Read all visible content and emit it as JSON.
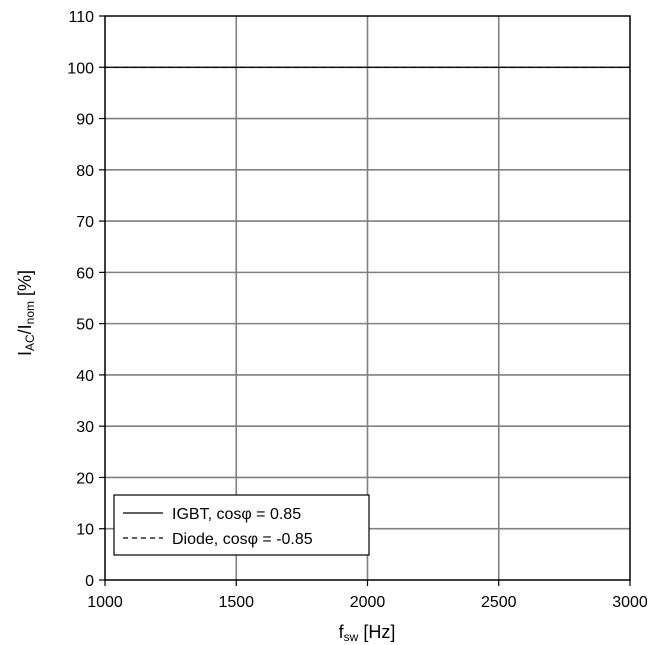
{
  "chart_data": {
    "type": "line",
    "title": "",
    "xlabel": {
      "main": "f",
      "sub": "sw",
      "unit": " [Hz]"
    },
    "ylabel": {
      "p1": "I",
      "s1": "AC",
      "p2": "/I",
      "s2": "nom",
      "unit": " [%]"
    },
    "xlim": [
      1000,
      3000
    ],
    "ylim": [
      0,
      110
    ],
    "xticks": [
      1000,
      1500,
      2000,
      2500,
      3000
    ],
    "yticks": [
      0,
      10,
      20,
      30,
      40,
      50,
      60,
      70,
      80,
      90,
      100,
      110
    ],
    "grid": true,
    "legend_position": "bottom-left",
    "series": [
      {
        "name": "IGBT, cosφ = 0.85",
        "style": "solid",
        "color": "#000000",
        "x": [
          1000,
          1500,
          2000,
          2500,
          3000
        ],
        "y": [
          100,
          100,
          100,
          100,
          100
        ]
      },
      {
        "name": "Diode, cosφ = -0.85",
        "style": "dashed",
        "color": "#000000",
        "x": [
          1000,
          1500,
          2000,
          2500,
          3000
        ],
        "y": [
          100,
          100,
          100,
          100,
          100
        ]
      }
    ]
  }
}
